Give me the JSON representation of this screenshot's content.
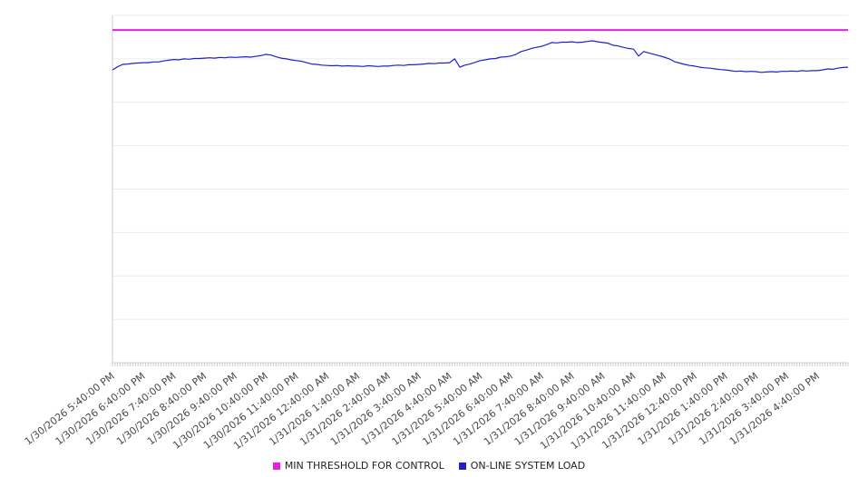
{
  "chart_data": {
    "type": "line",
    "title": "",
    "legend_position": "bottom",
    "grid": "horizontal",
    "gridline_divisions": 8,
    "y_axis_labels_visible": false,
    "ylim": [
      0,
      100
    ],
    "minor_tick_interval_minutes": 5,
    "sample_interval_minutes": 10,
    "start_label": "1/30/2026 5:40:00 PM",
    "x_labels": [
      "1/30/2026 5:40:00 PM",
      "1/30/2026 6:40:00 PM",
      "1/30/2026 7:40:00 PM",
      "1/30/2026 8:40:00 PM",
      "1/30/2026 9:40:00 PM",
      "1/30/2026 10:40:00 PM",
      "1/30/2026 11:40:00 PM",
      "1/31/2026 12:40:00 AM",
      "1/31/2026 1:40:00 AM",
      "1/31/2026 2:40:00 AM",
      "1/31/2026 3:40:00 AM",
      "1/31/2026 4:40:00 AM",
      "1/31/2026 5:40:00 AM",
      "1/31/2026 6:40:00 AM",
      "1/31/2026 7:40:00 AM",
      "1/31/2026 8:40:00 AM",
      "1/31/2026 9:40:00 AM",
      "1/31/2026 10:40:00 AM",
      "1/31/2026 11:40:00 AM",
      "1/31/2026 12:40:00 PM",
      "1/31/2026 1:40:00 PM",
      "1/31/2026 2:40:00 PM",
      "1/31/2026 3:40:00 PM",
      "1/31/2026 4:40:00 PM"
    ],
    "series": [
      {
        "name": "MIN THRESHOLD FOR CONTROL",
        "color": "#e321e3",
        "style": "constant",
        "value": 95.8
      },
      {
        "name": "ON-LINE SYSTEM LOAD",
        "color": "#2020cc",
        "values": [
          84.3,
          85.2,
          85.9,
          86.0,
          86.2,
          86.3,
          86.4,
          86.4,
          86.6,
          86.6,
          86.9,
          87.1,
          87.3,
          87.2,
          87.5,
          87.4,
          87.6,
          87.6,
          87.7,
          87.8,
          87.7,
          87.9,
          87.8,
          88.0,
          87.9,
          88.0,
          88.1,
          88.0,
          88.2,
          88.4,
          88.8,
          88.6,
          88.1,
          87.7,
          87.5,
          87.2,
          87.0,
          86.8,
          86.4,
          86.0,
          85.9,
          85.7,
          85.6,
          85.5,
          85.6,
          85.4,
          85.5,
          85.4,
          85.4,
          85.3,
          85.5,
          85.4,
          85.3,
          85.4,
          85.4,
          85.6,
          85.7,
          85.6,
          85.8,
          85.8,
          85.9,
          86.0,
          86.2,
          86.1,
          86.3,
          86.3,
          86.4,
          87.5,
          85.1,
          85.7,
          86.0,
          86.5,
          87.0,
          87.2,
          87.5,
          87.6,
          88.0,
          88.1,
          88.3,
          88.8,
          89.6,
          90.0,
          90.5,
          90.8,
          91.1,
          91.6,
          92.2,
          92.1,
          92.3,
          92.3,
          92.4,
          92.2,
          92.3,
          92.5,
          92.7,
          92.4,
          92.2,
          92.0,
          91.4,
          91.2,
          90.8,
          90.5,
          90.3,
          88.3,
          89.6,
          89.2,
          88.8,
          88.4,
          88.0,
          87.5,
          86.7,
          86.3,
          85.9,
          85.6,
          85.4,
          85.1,
          84.9,
          84.8,
          84.6,
          84.4,
          84.3,
          84.1,
          83.9,
          84.0,
          83.8,
          83.9,
          83.8,
          83.6,
          83.7,
          83.8,
          83.7,
          83.9,
          83.9,
          84.0,
          83.9,
          84.1,
          84.0,
          84.1,
          84.1,
          84.3,
          84.6,
          84.5,
          84.8,
          85.0,
          85.1
        ]
      }
    ],
    "colors": {
      "grid": "#ebebeb",
      "axis": "#cccccc",
      "tick": "#cccccc",
      "label": "#4a4a4a",
      "background": "#ffffff"
    }
  }
}
